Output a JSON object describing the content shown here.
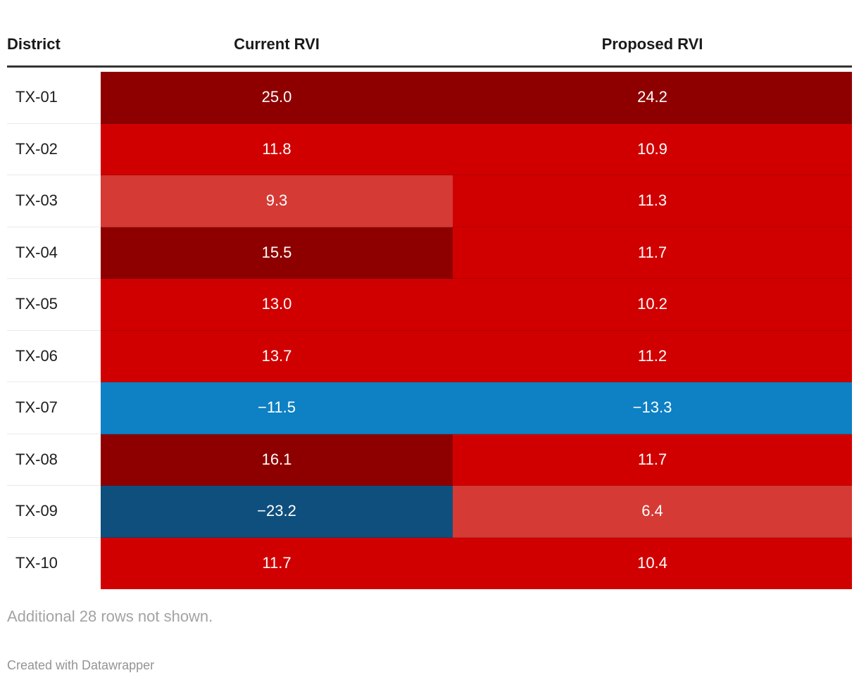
{
  "header": {
    "district": "District",
    "current": "Current RVI",
    "proposed": "Proposed RVI"
  },
  "chart_data": {
    "type": "table",
    "title": "",
    "columns": [
      "District",
      "Current RVI",
      "Proposed RVI"
    ],
    "rows": [
      {
        "district": "TX-01",
        "current": "25.0",
        "proposed": "24.2",
        "current_color": "#8e0000",
        "proposed_color": "#8e0000"
      },
      {
        "district": "TX-02",
        "current": "11.8",
        "proposed": "10.9",
        "current_color": "#d10000",
        "proposed_color": "#d10000"
      },
      {
        "district": "TX-03",
        "current": "9.3",
        "proposed": "11.3",
        "current_color": "#d53a35",
        "proposed_color": "#d10000"
      },
      {
        "district": "TX-04",
        "current": "15.5",
        "proposed": "11.7",
        "current_color": "#8e0000",
        "proposed_color": "#d10000"
      },
      {
        "district": "TX-05",
        "current": "13.0",
        "proposed": "10.2",
        "current_color": "#d10000",
        "proposed_color": "#d10000"
      },
      {
        "district": "TX-06",
        "current": "13.7",
        "proposed": "11.2",
        "current_color": "#d10000",
        "proposed_color": "#d10000"
      },
      {
        "district": "TX-07",
        "current": "−11.5",
        "proposed": "−13.3",
        "current_color": "#0e80c4",
        "proposed_color": "#0e80c4"
      },
      {
        "district": "TX-08",
        "current": "16.1",
        "proposed": "11.7",
        "current_color": "#8e0000",
        "proposed_color": "#d10000"
      },
      {
        "district": "TX-09",
        "current": "−23.2",
        "proposed": "6.4",
        "current_color": "#0f4f7d",
        "proposed_color": "#d53a35"
      },
      {
        "district": "TX-10",
        "current": "11.7",
        "proposed": "10.4",
        "current_color": "#d10000",
        "proposed_color": "#d10000"
      }
    ],
    "color_legend": {
      "dark_red": "#8e0000",
      "red": "#d10000",
      "light_red": "#d53a35",
      "blue": "#0e80c4",
      "dark_blue": "#0f4f7d"
    }
  },
  "footer": {
    "note": "Additional 28 rows not shown.",
    "attribution": "Created with Datawrapper"
  }
}
